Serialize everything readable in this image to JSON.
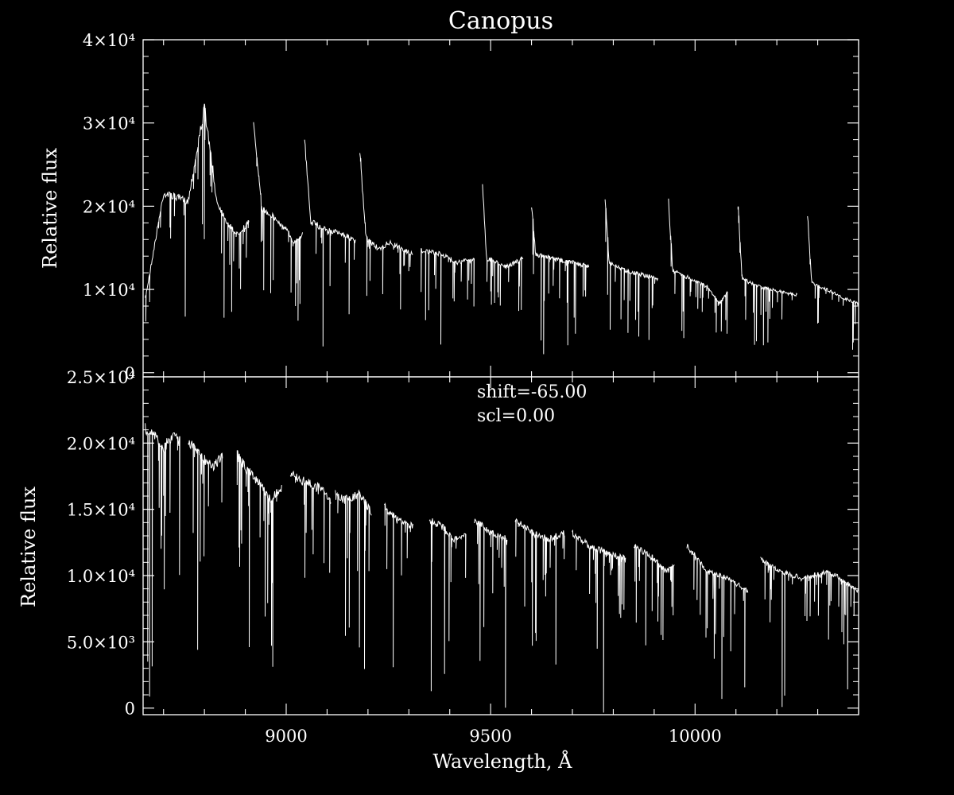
{
  "chart_data": [
    {
      "type": "line",
      "title": "Canopus",
      "ylabel": "Relative flux",
      "xlabel": "",
      "xlim": [
        8650,
        10400
      ],
      "ylim": [
        -500,
        40000
      ],
      "ytick_labels": [
        "0",
        "1×10⁴",
        "2×10⁴",
        "3×10⁴",
        "4×10⁴"
      ],
      "ytick_values": [
        0,
        10000,
        20000,
        30000,
        40000
      ],
      "x_tick_labels_shown": false,
      "annotations": [],
      "segments": [
        {
          "x": [
            8655,
            8700,
            8760,
            8800,
            8830,
            8860,
            8880,
            8910
          ],
          "y": [
            9000,
            22000,
            21000,
            32500,
            21000,
            18000,
            17000,
            18500
          ]
        },
        {
          "x": [
            8920,
            8940,
            8960,
            9000,
            9020,
            9040
          ],
          "y": [
            31000,
            20000,
            19500,
            17500,
            16000,
            17000
          ]
        },
        {
          "x": [
            9045,
            9060,
            9100,
            9140,
            9170
          ],
          "y": [
            28500,
            18500,
            17500,
            17000,
            16000
          ]
        },
        {
          "x": [
            9180,
            9195,
            9230,
            9250,
            9310
          ],
          "y": [
            27000,
            16500,
            15000,
            16000,
            14500
          ]
        },
        {
          "x": [
            9330,
            9380,
            9420,
            9460
          ],
          "y": [
            15000,
            14500,
            13500,
            14000
          ]
        },
        {
          "x": [
            9480,
            9490,
            9540,
            9580
          ],
          "y": [
            23000,
            14000,
            13000,
            14000
          ]
        },
        {
          "x": [
            9600,
            9610,
            9650,
            9700,
            9740
          ],
          "y": [
            20500,
            14500,
            14000,
            13500,
            13000
          ]
        },
        {
          "x": [
            9780,
            9790,
            9830,
            9870,
            9910
          ],
          "y": [
            21500,
            13500,
            12500,
            12000,
            11500
          ]
        },
        {
          "x": [
            9935,
            9945,
            9990,
            10030,
            10060,
            10080
          ],
          "y": [
            21000,
            12500,
            11500,
            10500,
            8500,
            10000
          ]
        },
        {
          "x": [
            10105,
            10115,
            10160,
            10200,
            10250
          ],
          "y": [
            20500,
            11500,
            10500,
            10000,
            9500
          ]
        },
        {
          "x": [
            10275,
            10285,
            10330,
            10370,
            10400
          ],
          "y": [
            19500,
            11000,
            10000,
            9000,
            8500
          ]
        }
      ]
    },
    {
      "type": "line",
      "title": "",
      "ylabel": "Relative flux",
      "xlabel": "Wavelength, Å",
      "xlim": [
        8650,
        10400
      ],
      "ylim": [
        -500,
        25000
      ],
      "ytick_labels": [
        "0",
        "5.0×10³",
        "1.0×10⁴",
        "1.5×10⁴",
        "2.0×10⁴",
        "2.5×10⁴"
      ],
      "ytick_values": [
        0,
        5000,
        10000,
        15000,
        20000,
        25000
      ],
      "xtick_labels": [
        "9000",
        "9500",
        "10000"
      ],
      "xtick_values": [
        9000,
        9500,
        10000
      ],
      "annotations": [
        "shift=-65.00",
        "scl=0.00"
      ],
      "segments": [
        {
          "x": [
            8655,
            8680,
            8700,
            8720,
            8740
          ],
          "y": [
            21500,
            21000,
            20000,
            21000,
            20500
          ]
        },
        {
          "x": [
            8760,
            8790,
            8820,
            8845
          ],
          "y": [
            20500,
            19500,
            18500,
            19500
          ]
        },
        {
          "x": [
            8880,
            8900,
            8930,
            8960,
            8990
          ],
          "y": [
            19500,
            18500,
            17500,
            16000,
            17000
          ]
        },
        {
          "x": [
            9010,
            9040,
            9080,
            9110
          ],
          "y": [
            18000,
            17500,
            17000,
            16000
          ]
        },
        {
          "x": [
            9120,
            9140,
            9180,
            9210
          ],
          "y": [
            16500,
            16000,
            16500,
            15000
          ]
        },
        {
          "x": [
            9240,
            9270,
            9310
          ],
          "y": [
            15500,
            14500,
            14000
          ]
        },
        {
          "x": [
            9350,
            9380,
            9410,
            9440
          ],
          "y": [
            14500,
            14000,
            13000,
            13500
          ]
        },
        {
          "x": [
            9460,
            9500,
            9540
          ],
          "y": [
            14500,
            13500,
            13000
          ]
        },
        {
          "x": [
            9560,
            9600,
            9640,
            9680
          ],
          "y": [
            14500,
            13500,
            13000,
            13500
          ]
        },
        {
          "x": [
            9700,
            9740,
            9780,
            9830
          ],
          "y": [
            13500,
            12500,
            12000,
            11500
          ]
        },
        {
          "x": [
            9850,
            9900,
            9930,
            9950
          ],
          "y": [
            12500,
            11500,
            10500,
            11000
          ]
        },
        {
          "x": [
            9980,
            10030,
            10080,
            10130
          ],
          "y": [
            12500,
            10500,
            10000,
            9000
          ]
        },
        {
          "x": [
            10160,
            10210,
            10260,
            10330,
            10400
          ],
          "y": [
            11500,
            10500,
            10000,
            10500,
            9000
          ]
        }
      ]
    }
  ]
}
